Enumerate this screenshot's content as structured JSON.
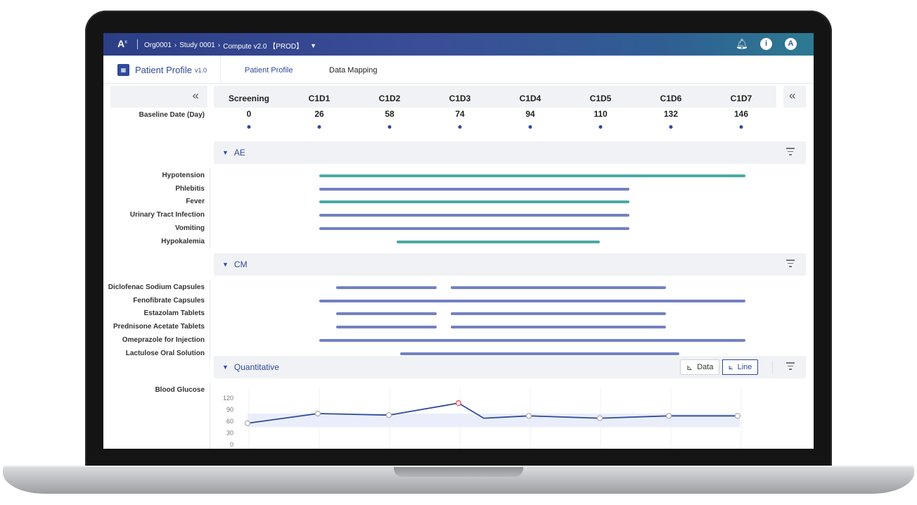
{
  "topbar": {
    "logo": "A",
    "logo_sup": "x",
    "crumbs": [
      "Org0001",
      "Study 0001",
      "Compute v2.0 【PROD】"
    ],
    "user_initial": "A"
  },
  "app": {
    "title": "Patient Profile",
    "version": "v1.0",
    "badge": "▦",
    "tabs": [
      "Patient Profile",
      "Data Mapping"
    ]
  },
  "timeline": {
    "baseline_label": "Baseline Date (Day)",
    "visits": [
      "Screening",
      "C1D1",
      "C1D2",
      "C1D3",
      "C1D4",
      "C1D5",
      "C1D6",
      "C1D7"
    ],
    "days": [
      "0",
      "26",
      "58",
      "74",
      "94",
      "110",
      "132",
      "146"
    ]
  },
  "sections": {
    "ae": {
      "title": "AE",
      "rows": [
        {
          "label": "Hypotension",
          "color": "#4aa9a4"
        },
        {
          "label": "Phlebitis",
          "color": "#7381c2"
        },
        {
          "label": "Fever",
          "color": "#4aa9a4"
        },
        {
          "label": "Urinary Tract Infection",
          "color": "#7381c2"
        },
        {
          "label": "Vomiting",
          "color": "#7381c2"
        },
        {
          "label": "Hypokalemia",
          "color": "#4aa9a4"
        }
      ]
    },
    "cm": {
      "title": "CM",
      "rows": [
        {
          "label": "Diclofenac Sodium Capsules"
        },
        {
          "label": "Fenofibrate Capsules"
        },
        {
          "label": "Estazolam Tablets"
        },
        {
          "label": "Prednisone Acetate Tablets"
        },
        {
          "label": "Omeprazole for Injection"
        },
        {
          "label": "Lactulose Oral Solution"
        }
      ],
      "color": "#7381c2"
    },
    "quantitative": {
      "title": "Quantitative",
      "data_button": "Data",
      "line_button": "Line",
      "row_label": "Blood Glucose"
    }
  },
  "chart_data": {
    "type": "line",
    "x": [
      "Screening",
      "C1D1",
      "C1D2",
      "C1D3",
      "",
      "C1D4",
      "C1D5",
      "C1D6",
      "C1D7"
    ],
    "series": [
      {
        "values": [
          55,
          80,
          76,
          107,
          68,
          74,
          68,
          74,
          74
        ]
      }
    ],
    "yticks": [
      "120",
      "90",
      "60",
      "30",
      "0"
    ],
    "ylim": [
      0,
      120
    ],
    "normal_range": [
      45,
      80
    ],
    "highlight_point": 3,
    "line_color": "#2f4a9a",
    "highlight_color": "#d9534f"
  }
}
